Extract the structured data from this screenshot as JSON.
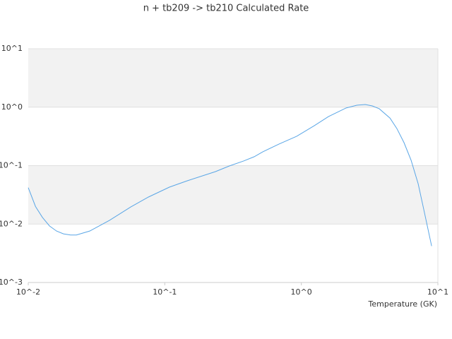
{
  "chart_data": {
    "type": "line",
    "title": "n + tb209 -> tb210 Calculated Rate",
    "x_label": "Temperature (GK)",
    "xscale": "log",
    "yscale": "log",
    "xlim": [
      0.01,
      10
    ],
    "ylim": [
      0.001,
      10
    ],
    "xticks": [
      {
        "value": 0.01,
        "label": "10^-2"
      },
      {
        "value": 0.1,
        "label": "10^-1"
      },
      {
        "value": 1,
        "label": "10^0"
      },
      {
        "value": 10,
        "label": "10^1"
      }
    ],
    "yticks": [
      {
        "value": 0.001,
        "label": "10^-3"
      },
      {
        "value": 0.01,
        "label": "10^-2"
      },
      {
        "value": 0.1,
        "label": "10^-1"
      },
      {
        "value": 1,
        "label": "10^0"
      },
      {
        "value": 10,
        "label": "10^1"
      }
    ],
    "grid_bands": true,
    "x": [
      0.01,
      0.0113,
      0.0127,
      0.0143,
      0.0161,
      0.0181,
      0.0204,
      0.0225,
      0.0282,
      0.0394,
      0.0563,
      0.0759,
      0.108,
      0.146,
      0.235,
      0.298,
      0.378,
      0.452,
      0.521,
      0.687,
      0.925,
      1.245,
      1.58,
      2.13,
      2.55,
      2.94,
      3.31,
      3.72,
      4.46,
      5.01,
      5.65,
      6.37,
      7.17,
      7.89,
      9.0
    ],
    "series": [
      {
        "color": "#5aa6e6",
        "values": [
          0.042,
          0.02,
          0.013,
          0.0093,
          0.0076,
          0.0068,
          0.0065,
          0.0065,
          0.0076,
          0.0116,
          0.0196,
          0.029,
          0.0428,
          0.055,
          0.079,
          0.099,
          0.12,
          0.142,
          0.172,
          0.234,
          0.318,
          0.482,
          0.69,
          0.97,
          1.08,
          1.11,
          1.05,
          0.94,
          0.65,
          0.43,
          0.247,
          0.123,
          0.049,
          0.0176,
          0.0042
        ]
      }
    ]
  }
}
